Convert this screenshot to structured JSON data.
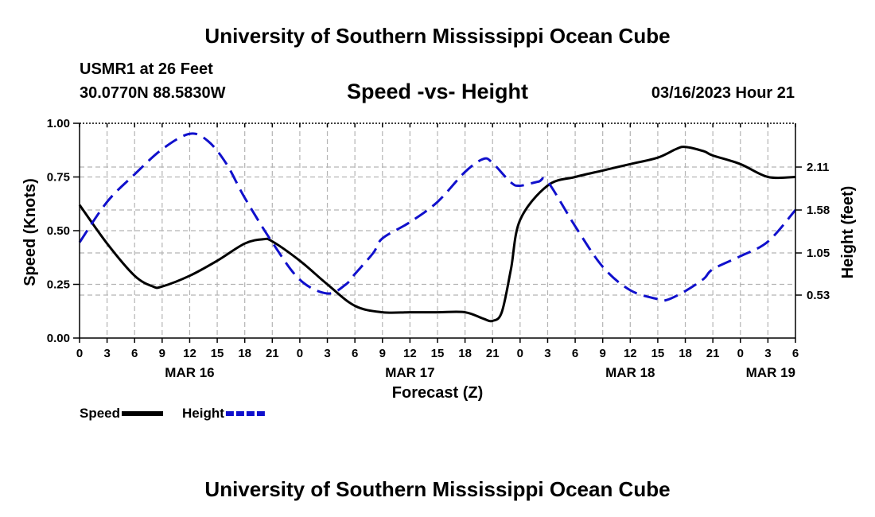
{
  "header": {
    "title": "University of Southern Mississippi Ocean Cube",
    "station": "USMR1 at 26 Feet",
    "coords": "30.0770N  88.5830W",
    "subtitle": "Speed -vs- Height",
    "datetime": "03/16/2023 Hour 21"
  },
  "footer": {
    "title": "University of Southern Mississippi Ocean Cube"
  },
  "chart_data": {
    "type": "line",
    "title": "Speed -vs- Height",
    "xlabel": "Forecast (Z)",
    "ylabel": "Speed (Knots)",
    "y2label": "Height (feet)",
    "xlim": [
      0,
      78
    ],
    "ylim": [
      0,
      1
    ],
    "y2lim": [
      0.0,
      2.65
    ],
    "x_ticks": [
      0,
      3,
      6,
      9,
      12,
      15,
      18,
      21,
      24,
      27,
      30,
      33,
      36,
      39,
      42,
      45,
      48,
      51,
      54,
      57,
      60,
      63,
      66,
      69,
      72,
      75,
      78
    ],
    "x_tick_labels": [
      "0",
      "3",
      "6",
      "9",
      "12",
      "15",
      "18",
      "21",
      "0",
      "3",
      "6",
      "9",
      "12",
      "15",
      "18",
      "21",
      "0",
      "3",
      "6",
      "9",
      "12",
      "15",
      "18",
      "21",
      "0",
      "3",
      "6"
    ],
    "date_labels": [
      {
        "x": 12,
        "label": "MAR 16"
      },
      {
        "x": 36,
        "label": "MAR 17"
      },
      {
        "x": 60,
        "label": "MAR 18"
      },
      {
        "x": 78,
        "label": "MAR 19"
      }
    ],
    "y_ticks": [
      0.0,
      0.25,
      0.5,
      0.75,
      1.0
    ],
    "y_tick_labels": [
      "0.00",
      "0.25",
      "0.50",
      "0.75",
      "1.00"
    ],
    "y2_ticks": [
      0.53,
      1.05,
      1.58,
      2.11
    ],
    "y2_tick_labels": [
      "0.53",
      "1.05",
      "1.58",
      "2.11"
    ],
    "grid": true,
    "legend": "bottom-left",
    "series": [
      {
        "name": "Speed",
        "axis": "left",
        "color": "#000000",
        "dash": "solid",
        "x": [
          0,
          3,
          6,
          8,
          9,
          12,
          15,
          18,
          20,
          21,
          24,
          27,
          30,
          33,
          36,
          39,
          42,
          44,
          45,
          46,
          47,
          48,
          51,
          54,
          57,
          60,
          63,
          65,
          66,
          68,
          69,
          72,
          75,
          78
        ],
        "values": [
          0.62,
          0.44,
          0.29,
          0.24,
          0.24,
          0.29,
          0.36,
          0.44,
          0.46,
          0.45,
          0.36,
          0.25,
          0.15,
          0.12,
          0.12,
          0.12,
          0.12,
          0.09,
          0.08,
          0.12,
          0.32,
          0.55,
          0.71,
          0.75,
          0.78,
          0.81,
          0.84,
          0.88,
          0.89,
          0.87,
          0.85,
          0.81,
          0.75,
          0.75
        ]
      },
      {
        "name": "Height",
        "axis": "right",
        "color": "#1010cc",
        "dash": "dashed",
        "x": [
          0,
          3,
          6,
          9,
          12,
          14,
          16,
          18,
          21,
          24,
          27,
          29,
          30,
          32,
          33,
          36,
          39,
          42,
          44,
          45,
          47,
          48,
          50,
          51,
          54,
          57,
          60,
          63,
          64,
          66,
          68,
          69,
          72,
          75,
          78
        ],
        "values": [
          1.18,
          1.68,
          2.02,
          2.33,
          2.52,
          2.43,
          2.15,
          1.73,
          1.18,
          0.72,
          0.55,
          0.66,
          0.79,
          1.05,
          1.23,
          1.43,
          1.68,
          2.05,
          2.21,
          2.16,
          1.92,
          1.88,
          1.93,
          1.93,
          1.38,
          0.88,
          0.59,
          0.48,
          0.47,
          0.58,
          0.73,
          0.85,
          1.01,
          1.19,
          1.58
        ]
      }
    ]
  }
}
